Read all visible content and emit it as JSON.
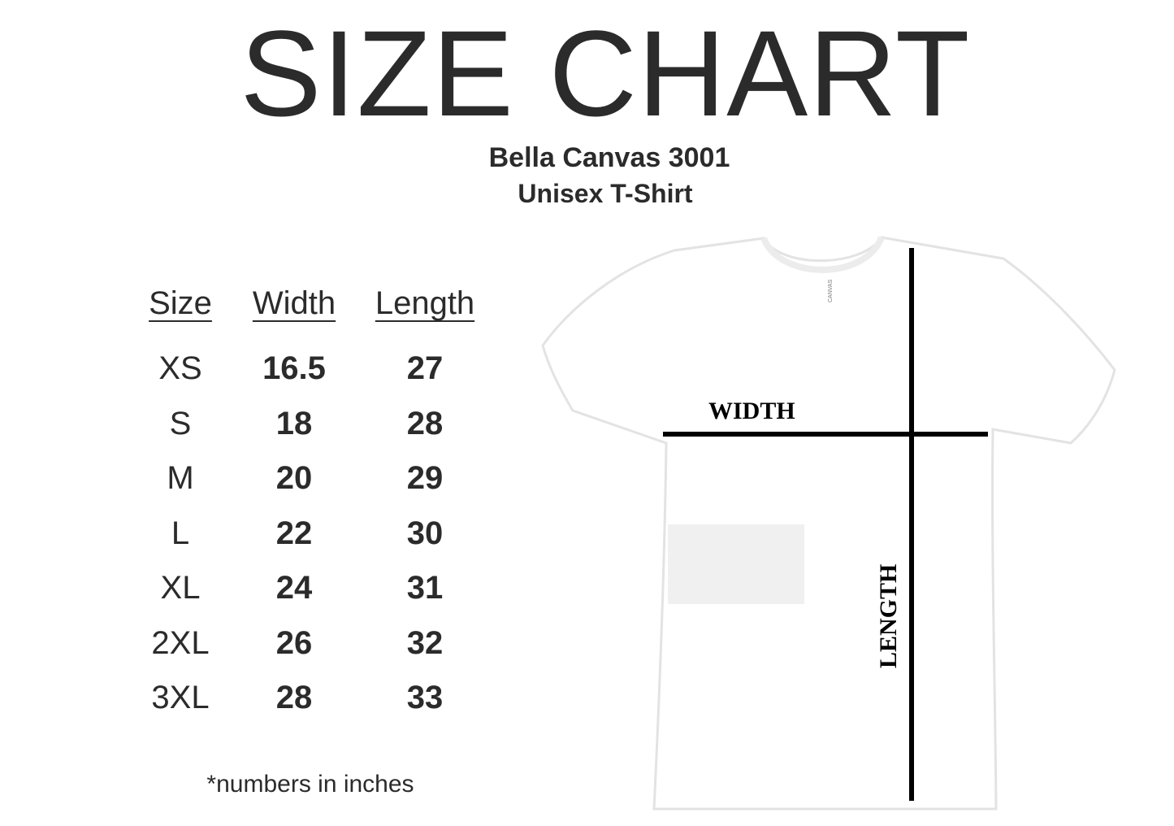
{
  "title": "SIZE CHART",
  "subtitle_line1": "Bella Canvas 3001",
  "subtitle_line2": "Unisex T-Shirt",
  "chart_data": {
    "type": "table",
    "columns": [
      "Size",
      "Width",
      "Length"
    ],
    "rows": [
      [
        "XS",
        "16.5",
        "27"
      ],
      [
        "S",
        "18",
        "28"
      ],
      [
        "M",
        "20",
        "29"
      ],
      [
        "L",
        "22",
        "30"
      ],
      [
        "XL",
        "24",
        "31"
      ],
      [
        "2XL",
        "26",
        "32"
      ],
      [
        "3XL",
        "28",
        "33"
      ]
    ]
  },
  "footnote": "*numbers in inches",
  "diagram": {
    "width_label": "WIDTH",
    "length_label": "LENGTH",
    "tag_label": "CANVAS"
  },
  "colors": {
    "text": "#2b2b2b",
    "lines": "#000000"
  }
}
